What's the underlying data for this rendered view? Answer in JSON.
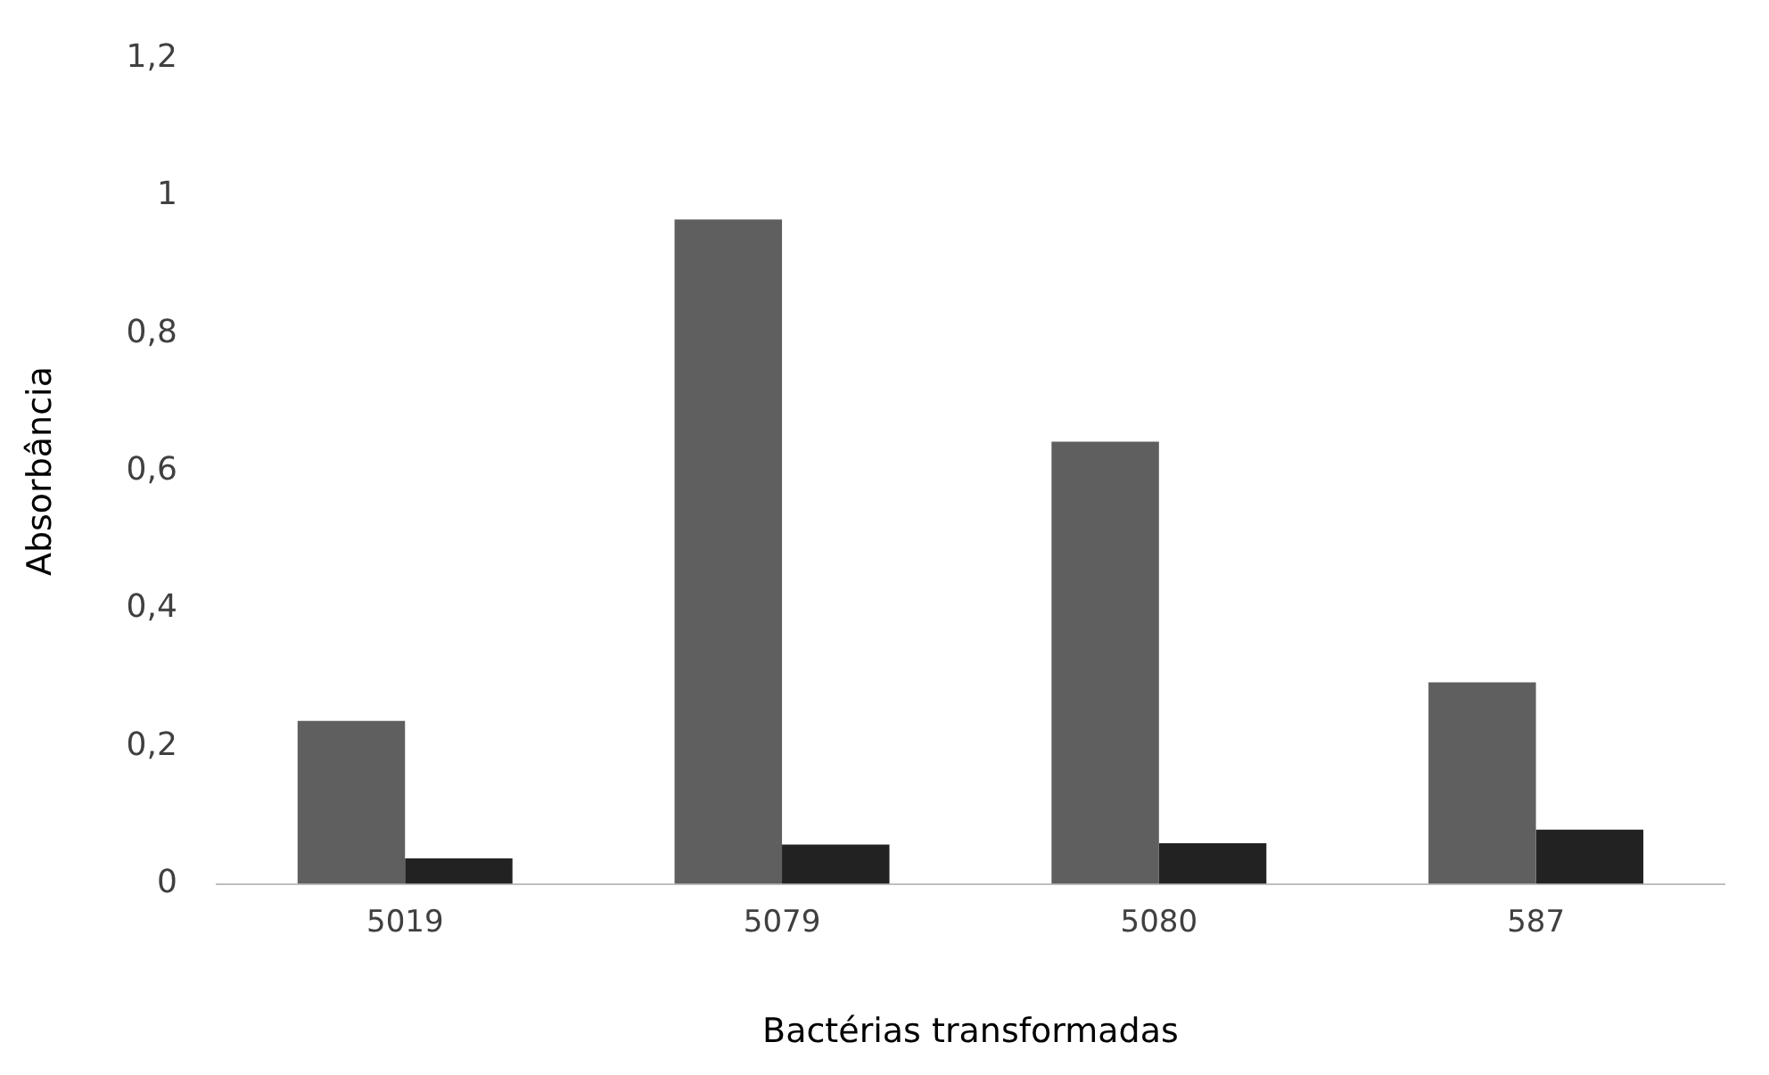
{
  "chart_data": {
    "type": "bar",
    "xlabel": "Bactérias transformadas",
    "ylabel": "Absorbância",
    "categories": [
      "5019",
      "5079",
      "5080",
      "587"
    ],
    "series": [
      {
        "color": "#5f5f5f",
        "values": [
          0.237,
          0.966,
          0.643,
          0.293
        ]
      },
      {
        "color": "#222222",
        "values": [
          0.037,
          0.057,
          0.059,
          0.079
        ]
      }
    ],
    "ylim": [
      0,
      1.2
    ],
    "yticks": [
      {
        "value": 0,
        "label": "0"
      },
      {
        "value": 0.2,
        "label": "0,2"
      },
      {
        "value": 0.4,
        "label": "0,4"
      },
      {
        "value": 0.6,
        "label": "0,6"
      },
      {
        "value": 0.8,
        "label": "0,8"
      },
      {
        "value": 1,
        "label": "1"
      },
      {
        "value": 1.2,
        "label": "1,2"
      }
    ],
    "grid": false,
    "legend": false
  }
}
